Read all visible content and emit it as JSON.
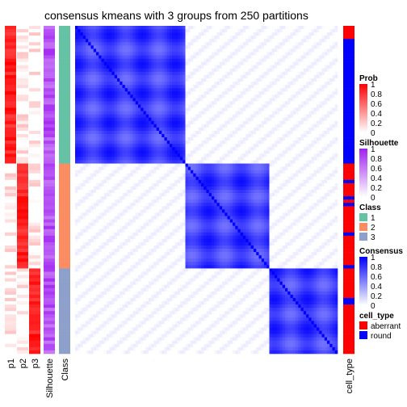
{
  "chart_data": {
    "type": "heatmap",
    "title": "consensus kmeans with 3 groups from 250 partitions",
    "groups": [
      {
        "class": "1",
        "size": 42
      },
      {
        "class": "2",
        "size": 32
      },
      {
        "class": "3",
        "size": 26
      }
    ],
    "annotation_labels": [
      "p1",
      "p2",
      "p3",
      "Silhouette",
      "Class",
      "cell_type"
    ],
    "legends": [
      {
        "title": "Prob",
        "type": "gradient",
        "ticks": [
          "1",
          "0.8",
          "0.6",
          "0.4",
          "0.2",
          "0"
        ],
        "colors": [
          "#ff0000",
          "#ffffff"
        ]
      },
      {
        "title": "Silhouette",
        "type": "gradient",
        "ticks": [
          "1",
          "0.8",
          "0.6",
          "0.4",
          "0.2",
          "0"
        ],
        "colors": [
          "#a020f0",
          "#ffffff"
        ]
      },
      {
        "title": "Class",
        "type": "discrete",
        "items": [
          {
            "label": "1",
            "color": "#66c2a5"
          },
          {
            "label": "2",
            "color": "#fc8d62"
          },
          {
            "label": "3",
            "color": "#8da0cb"
          }
        ]
      },
      {
        "title": "Consensus",
        "type": "gradient",
        "ticks": [
          "1",
          "0.8",
          "0.6",
          "0.4",
          "0.2",
          "0"
        ],
        "colors": [
          "#0000ff",
          "#ffffff"
        ]
      },
      {
        "title": "cell_type",
        "type": "discrete",
        "items": [
          {
            "label": "aberrant",
            "color": "#ff0000"
          },
          {
            "label": "round",
            "color": "#0000ff"
          }
        ]
      }
    ]
  }
}
